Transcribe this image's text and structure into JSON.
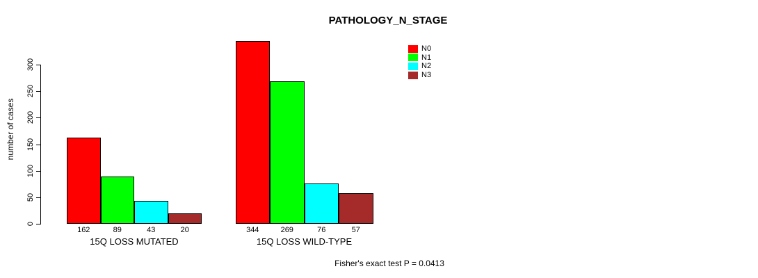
{
  "figure": {
    "title": "PATHOLOGY_N_STAGE",
    "footnote": "Fisher's exact test P = 0.0413"
  },
  "chart_data": {
    "type": "bar",
    "title": "PATHOLOGY_N_STAGE",
    "xlabel": "",
    "ylabel": "number of cases",
    "ylim": [
      0,
      300
    ],
    "yticks": [
      0,
      50,
      100,
      150,
      200,
      250,
      300
    ],
    "categories": [
      "15Q LOSS MUTATED",
      "15Q LOSS WILD-TYPE"
    ],
    "series": [
      {
        "name": "N0",
        "color": "#ff0000",
        "values": [
          162,
          344
        ]
      },
      {
        "name": "N1",
        "color": "#00ff00",
        "values": [
          89,
          269
        ]
      },
      {
        "name": "N2",
        "color": "#00ffff",
        "values": [
          43,
          76
        ]
      },
      {
        "name": "N3",
        "color": "#a52a2a",
        "values": [
          20,
          57
        ]
      }
    ],
    "bar_value_labels": [
      [
        162,
        89,
        43,
        20
      ],
      [
        344,
        269,
        76,
        57
      ]
    ],
    "legend": {
      "position": "top-right",
      "entries": [
        "N0",
        "N1",
        "N2",
        "N3"
      ]
    },
    "grid": false,
    "footnote": "Fisher's exact test P = 0.0413"
  }
}
